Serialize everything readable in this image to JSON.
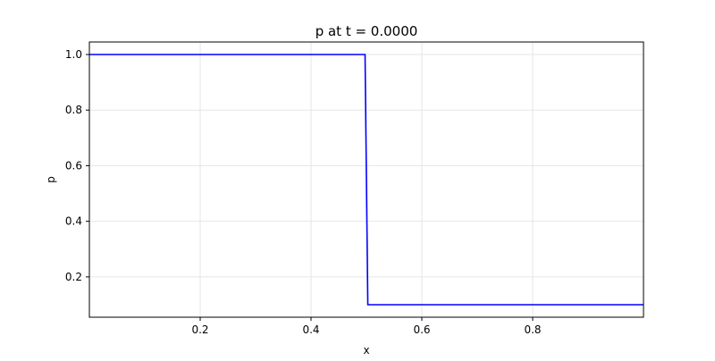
{
  "chart_data": {
    "type": "line",
    "title": "p at t = 0.0000",
    "xlabel": "x",
    "ylabel": "p",
    "xlim": [
      0.0,
      1.0
    ],
    "ylim": [
      0.055,
      1.045
    ],
    "xticks": [
      0.2,
      0.4,
      0.6,
      0.8
    ],
    "xtick_labels": [
      "0.2",
      "0.4",
      "0.6",
      "0.8"
    ],
    "yticks": [
      0.2,
      0.4,
      0.6,
      0.8,
      1.0
    ],
    "ytick_labels": [
      "0.2",
      "0.4",
      "0.6",
      "0.8",
      "1.0"
    ],
    "grid": true,
    "series": [
      {
        "color": "#0000ff",
        "x": [
          0.0,
          0.4975,
          0.5025,
          1.0
        ],
        "y": [
          1.0,
          1.0,
          0.1,
          0.1
        ]
      }
    ]
  }
}
